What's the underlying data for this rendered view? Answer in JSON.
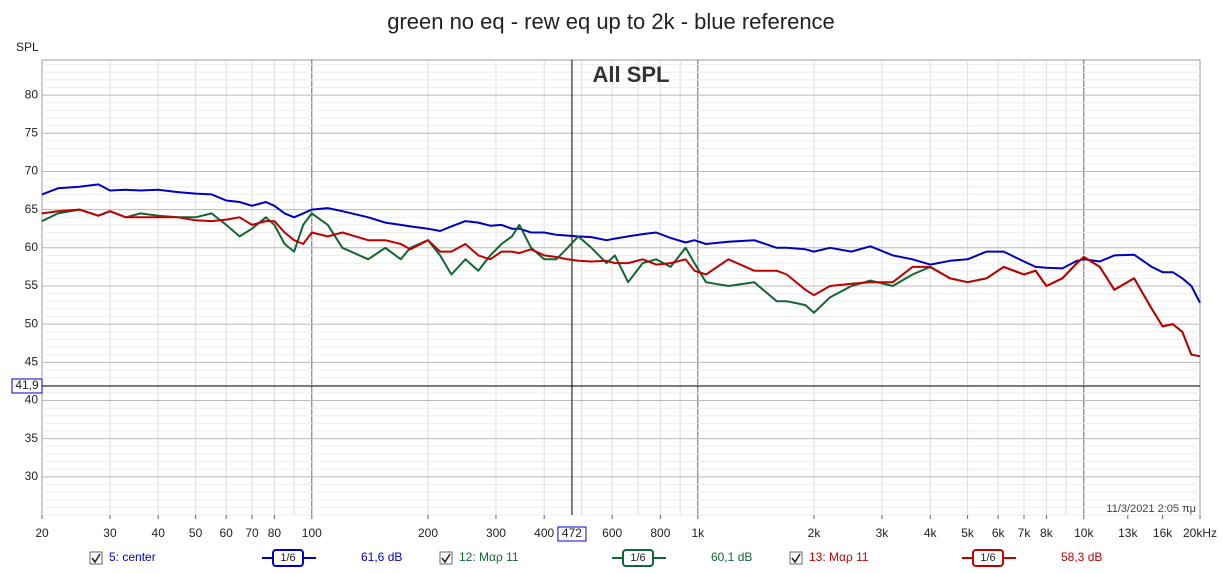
{
  "chart_data": {
    "type": "line",
    "title": "green no eq - rew eq up to 2k - blue reference",
    "subtitle": "All SPL",
    "y_label": "SPL",
    "timestamp": "11/3/2021 2:05 πμ",
    "x_scale": "log",
    "grid": true,
    "x": [
      20,
      22,
      25,
      28,
      30,
      33,
      36,
      40,
      45,
      50,
      55,
      60,
      65,
      70,
      76,
      80,
      85,
      90,
      95,
      100,
      110,
      120,
      140,
      155,
      170,
      180,
      200,
      215,
      230,
      250,
      270,
      290,
      310,
      330,
      345,
      370,
      400,
      430,
      460,
      490,
      530,
      580,
      610,
      660,
      720,
      780,
      850,
      930,
      980,
      1050,
      1200,
      1400,
      1600,
      1700,
      1900,
      2000,
      2200,
      2500,
      2800,
      3200,
      3600,
      4000,
      4500,
      5000,
      5600,
      6200,
      7000,
      7500,
      8000,
      8800,
      9600,
      10000,
      11000,
      12000,
      13500,
      15000,
      16000,
      17000,
      18000,
      19000,
      20000
    ],
    "series": [
      {
        "name": "5: center",
        "smoothing": "1/6",
        "level": "61,6 dB",
        "color": "#0000c0",
        "values": [
          67,
          67.8,
          68,
          68.3,
          67.5,
          67.6,
          67.5,
          67.6,
          67.3,
          67.1,
          67,
          66.2,
          66,
          65.5,
          66,
          65.5,
          64.5,
          64,
          64.5,
          65,
          65.2,
          64.8,
          64,
          63.3,
          63,
          62.8,
          62.5,
          62.2,
          62.8,
          63.5,
          63.3,
          62.9,
          63,
          62.5,
          62.5,
          62,
          62,
          61.7,
          61.6,
          61.5,
          61.4,
          61,
          61.2,
          61.5,
          61.8,
          62,
          61.3,
          60.7,
          61,
          60.5,
          60.8,
          61,
          60,
          60,
          59.8,
          59.5,
          60,
          59.5,
          60.2,
          59,
          58.5,
          57.8,
          58.3,
          58.5,
          59.5,
          59.5,
          58.2,
          57.5,
          57.4,
          57.3,
          58.3,
          58.5,
          58.2,
          59,
          59.1,
          57.5,
          56.8,
          56.8,
          56,
          55,
          52.8
        ]
      },
      {
        "name": "12: Μαρ 11",
        "smoothing": "1/6",
        "level": "60,1 dB",
        "color": "#116633",
        "values": [
          63.5,
          64.5,
          65,
          64.2,
          64.8,
          64,
          64.5,
          64.2,
          64,
          64,
          64.5,
          63,
          61.5,
          62.5,
          64,
          63,
          60.5,
          59.5,
          63,
          64.5,
          63,
          60,
          58.5,
          60,
          58.5,
          60,
          61,
          59,
          56.5,
          58.5,
          57,
          59,
          60.5,
          61.5,
          63,
          60,
          58.5,
          58.5,
          60,
          61.5,
          60,
          58,
          59,
          55.5,
          58,
          58.5,
          57.5,
          60,
          58,
          55.5,
          55,
          55.5,
          53,
          53,
          52.5,
          51.5,
          53.5,
          55,
          55.7,
          55,
          56.5,
          57.5,
          56,
          55.5,
          56,
          57.5,
          56.5,
          57,
          55,
          56,
          58,
          58.8,
          57.5,
          54.5,
          56,
          52,
          49.7,
          50,
          49,
          46,
          45.8
        ]
      },
      {
        "name": "13: Μαρ 11",
        "smoothing": "1/6",
        "level": "58,3 dB",
        "color": "#c00000",
        "values": [
          64.5,
          64.8,
          65,
          64.2,
          64.8,
          64,
          64,
          64,
          64,
          63.6,
          63.5,
          63.7,
          64,
          63,
          63.5,
          63.5,
          62,
          61,
          60.5,
          62,
          61.5,
          62,
          61,
          61,
          60.5,
          59.8,
          61,
          59.5,
          59.5,
          60.5,
          59,
          58.5,
          59.5,
          59.5,
          59.3,
          59.8,
          59,
          58.8,
          58.5,
          58.3,
          58.2,
          58.3,
          58,
          58,
          58.5,
          57.8,
          58,
          58.5,
          57,
          56.5,
          58.5,
          57,
          57,
          56.5,
          54.5,
          53.8,
          55,
          55.3,
          55.5,
          55.5,
          57.5,
          57.5,
          56,
          55.5,
          56,
          57.5,
          56.5,
          57,
          55,
          56,
          58,
          58.8,
          57.5,
          54.5,
          56,
          52,
          49.7,
          50,
          49,
          46,
          45.8
        ]
      }
    ],
    "xlim": [
      20,
      20000
    ],
    "ylim": [
      25,
      84.6
    ],
    "xticks": [
      20,
      30,
      40,
      50,
      60,
      70,
      80,
      100,
      200,
      300,
      400,
      600,
      800,
      {
        "value": 1000,
        "label": "1k"
      },
      {
        "value": 2000,
        "label": "2k"
      },
      {
        "value": 3000,
        "label": "3k"
      },
      {
        "value": 4000,
        "label": "4k"
      },
      {
        "value": 5000,
        "label": "5k"
      },
      {
        "value": 6000,
        "label": "6k"
      },
      {
        "value": 7000,
        "label": "7k"
      },
      {
        "value": 8000,
        "label": "8k"
      },
      {
        "value": 10000,
        "label": "10k"
      },
      {
        "value": 13000,
        "label": "13k"
      },
      {
        "value": 16000,
        "label": "16k"
      },
      {
        "value": 20000,
        "label": "20kHz"
      }
    ],
    "yticks": [
      30,
      35,
      40,
      45,
      50,
      55,
      60,
      65,
      70,
      75,
      80
    ],
    "cursor": {
      "x": 472,
      "y": {
        "value": 41.9,
        "label": "41,9"
      }
    }
  }
}
